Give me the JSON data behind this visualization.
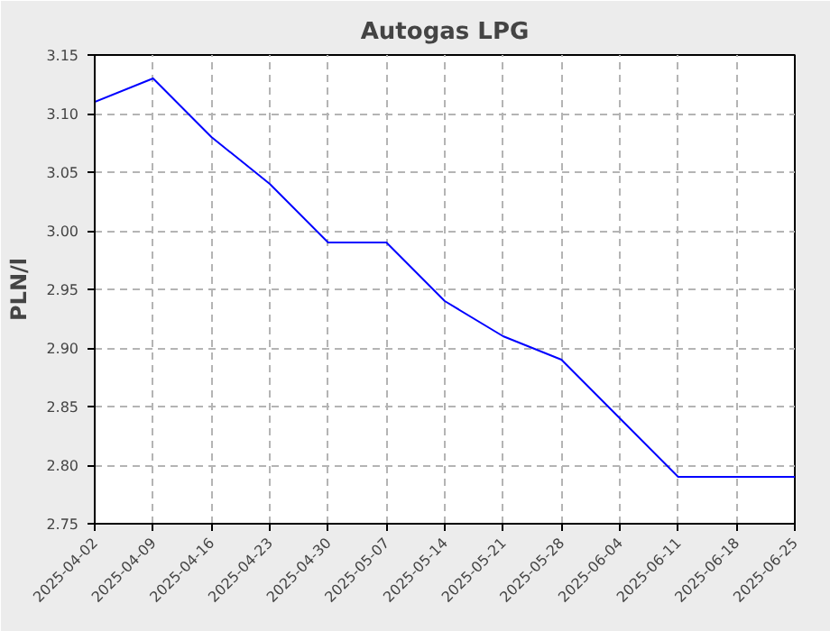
{
  "chart_data": {
    "type": "line",
    "title": "Autogas LPG",
    "ylabel": "PLN/l",
    "categories": [
      "2025-04-02",
      "2025-04-09",
      "2025-04-16",
      "2025-04-23",
      "2025-04-30",
      "2025-05-07",
      "2025-05-14",
      "2025-05-21",
      "2025-05-28",
      "2025-06-04",
      "2025-06-11",
      "2025-06-18",
      "2025-06-25"
    ],
    "series": [
      {
        "color": "#0000ff",
        "values": [
          3.11,
          3.13,
          3.08,
          3.04,
          2.99,
          2.99,
          2.94,
          2.91,
          2.89,
          2.84,
          2.79,
          2.79,
          2.79
        ]
      }
    ],
    "ylim": [
      2.75,
      3.15
    ],
    "yticks": [
      {
        "value": 2.75,
        "label": "2.75"
      },
      {
        "value": 2.8,
        "label": "2.80"
      },
      {
        "value": 2.85,
        "label": "2.85"
      },
      {
        "value": 2.9,
        "label": "2.90"
      },
      {
        "value": 2.95,
        "label": "2.95"
      },
      {
        "value": 3.0,
        "label": "3.00"
      },
      {
        "value": 3.05,
        "label": "3.05"
      },
      {
        "value": 3.1,
        "label": "3.10"
      },
      {
        "value": 3.15,
        "label": "3.15"
      }
    ],
    "grid": true,
    "marker": "none",
    "line_style": "solid"
  }
}
